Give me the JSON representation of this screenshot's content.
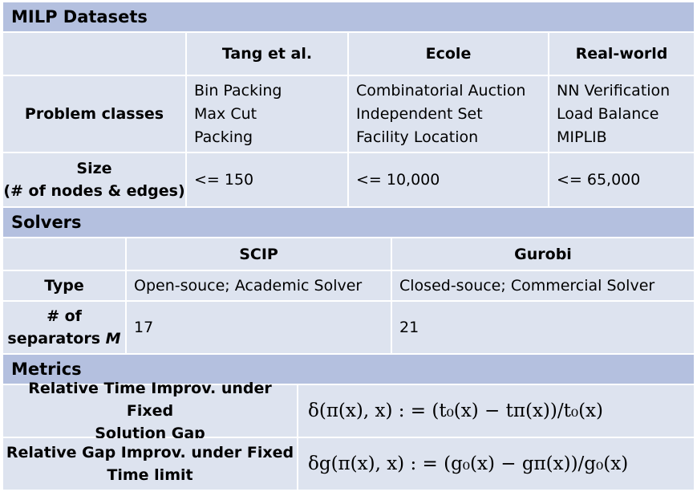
{
  "datasets": {
    "title": "MILP Datasets",
    "columns": [
      "Tang et al.",
      "Ecole",
      "Real-world"
    ],
    "problem_label": "Problem classes",
    "problem_classes": [
      [
        "Bin Packing",
        "Max Cut",
        "Packing"
      ],
      [
        "Combinatorial Auction",
        "Independent Set",
        "Facility Location"
      ],
      [
        "NN Verification",
        "Load Balance",
        "MIPLIB"
      ]
    ],
    "size_label_line1": "Size",
    "size_label_line2": "(# of nodes & edges)",
    "sizes": [
      "<= 150",
      "<= 10,000",
      "<= 65,000"
    ]
  },
  "solvers": {
    "title": "Solvers",
    "columns": [
      "SCIP",
      "Gurobi"
    ],
    "type_label": "Type",
    "types": [
      "Open-souce; Academic Solver",
      "Closed-souce; Commercial Solver"
    ],
    "sep_label_line1": "# of",
    "sep_label_line2": "separators",
    "sep_label_var": "M",
    "separators": [
      "17",
      "21"
    ]
  },
  "metrics": {
    "title": "Metrics",
    "rows": [
      {
        "label_line1": "Relative Time Improv. under Fixed",
        "label_line2": "Solution Gap",
        "formula": "δ(π(x), x) : = (t₀(x) − tπ(x))/t₀(x)"
      },
      {
        "label_line1": "Relative Gap Improv. under Fixed",
        "label_line2": "Time limit",
        "formula": "δg(π(x), x) : = (g₀(x) − gπ(x))/g₀(x)"
      }
    ]
  },
  "colors": {
    "header": "#b4c0df",
    "cell": "#dde3ef",
    "grid": "#ffffff"
  }
}
